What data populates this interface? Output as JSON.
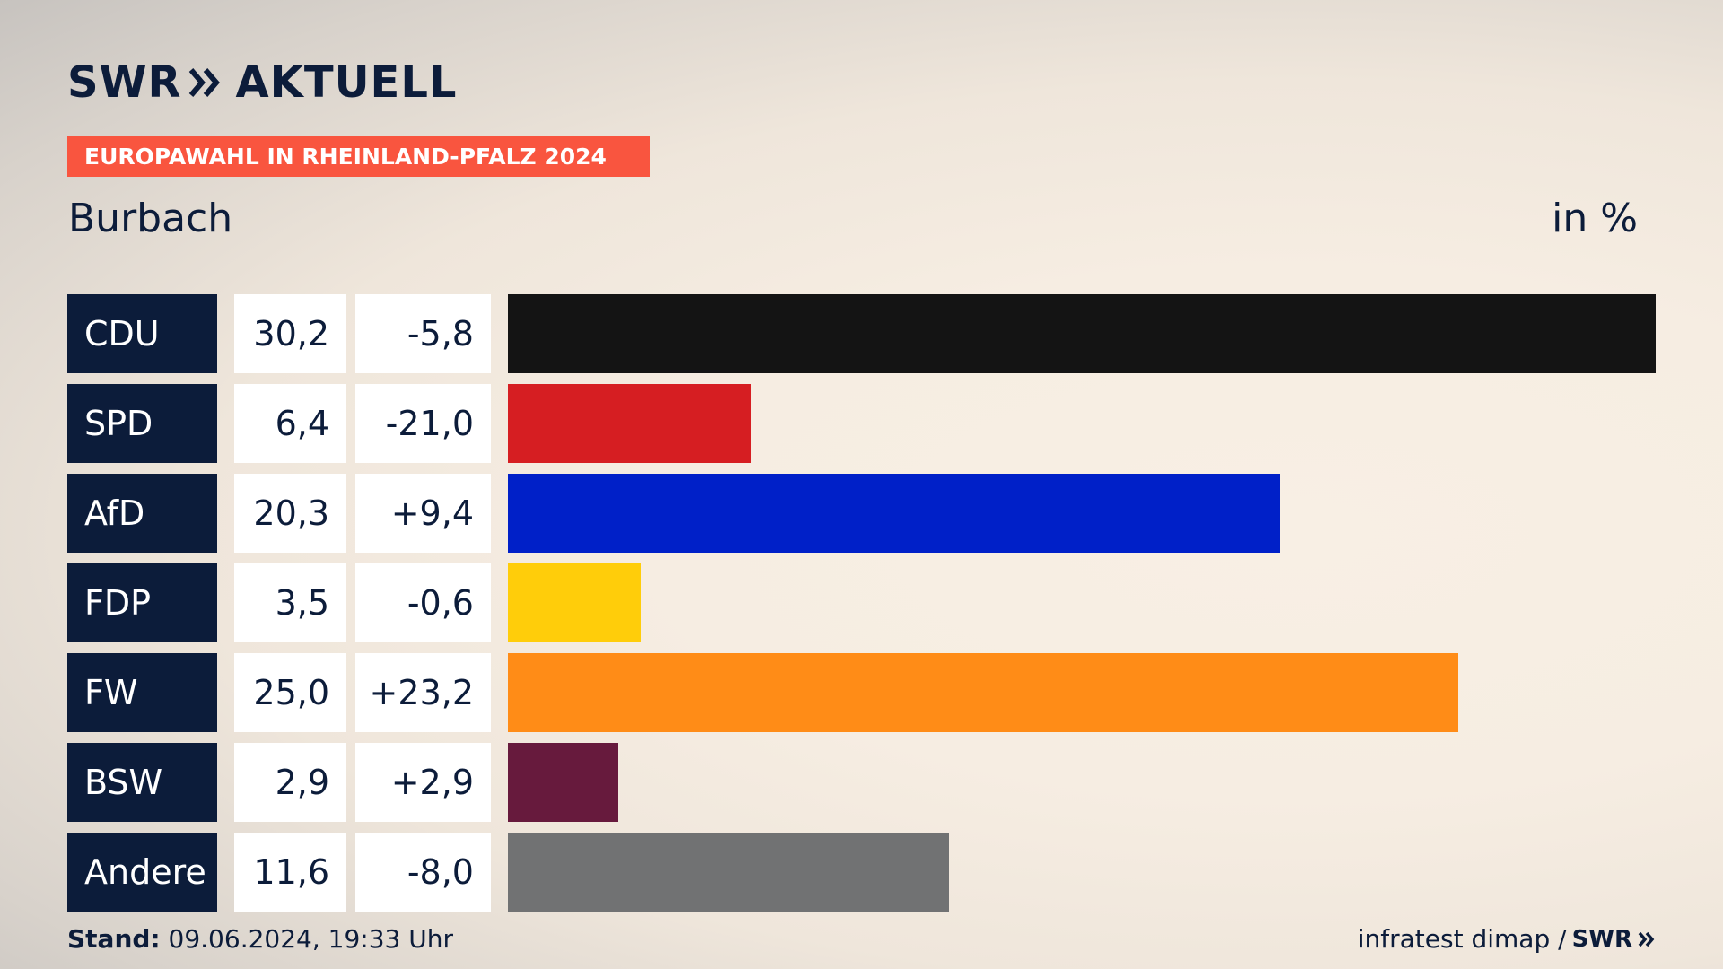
{
  "header": {
    "logo_swr": "SWR",
    "logo_aktuell": "AKTUELL",
    "banner": "EUROPAWAHL IN RHEINLAND-PFALZ 2024",
    "place": "Burbach",
    "unit": "in %"
  },
  "colors": {
    "navy": "#0c1c3a",
    "banner": "#f9553f"
  },
  "chart_data": {
    "type": "bar",
    "title": "EUROPAWAHL IN RHEINLAND-PFALZ 2024",
    "subtitle": "Burbach",
    "unit": "in %",
    "categories": [
      "CDU",
      "SPD",
      "AfD",
      "FDP",
      "FW",
      "BSW",
      "Andere"
    ],
    "values": [
      30.2,
      6.4,
      20.3,
      3.5,
      25.0,
      2.9,
      11.6
    ],
    "value_labels": [
      "30,2",
      "6,4",
      "20,3",
      "3,5",
      "25,0",
      "2,9",
      "11,6"
    ],
    "change_labels": [
      "-5,8",
      "-21,0",
      "+9,4",
      "-0,6",
      "+23,2",
      "+2,9",
      "-8,0"
    ],
    "changes": [
      -5.8,
      -21.0,
      9.4,
      -0.6,
      23.2,
      2.9,
      -8.0
    ],
    "colors": [
      "#141414",
      "#d61e22",
      "#0020c8",
      "#ffcd0a",
      "#ff8c17",
      "#671a3d",
      "#717273"
    ],
    "orientation": "horizontal",
    "xlim": [
      0,
      30.2
    ]
  },
  "footer": {
    "stand_label": "Stand:",
    "stand_value": "09.06.2024, 19:33 Uhr",
    "source": "infratest dimap /",
    "source_logo": "SWR"
  }
}
